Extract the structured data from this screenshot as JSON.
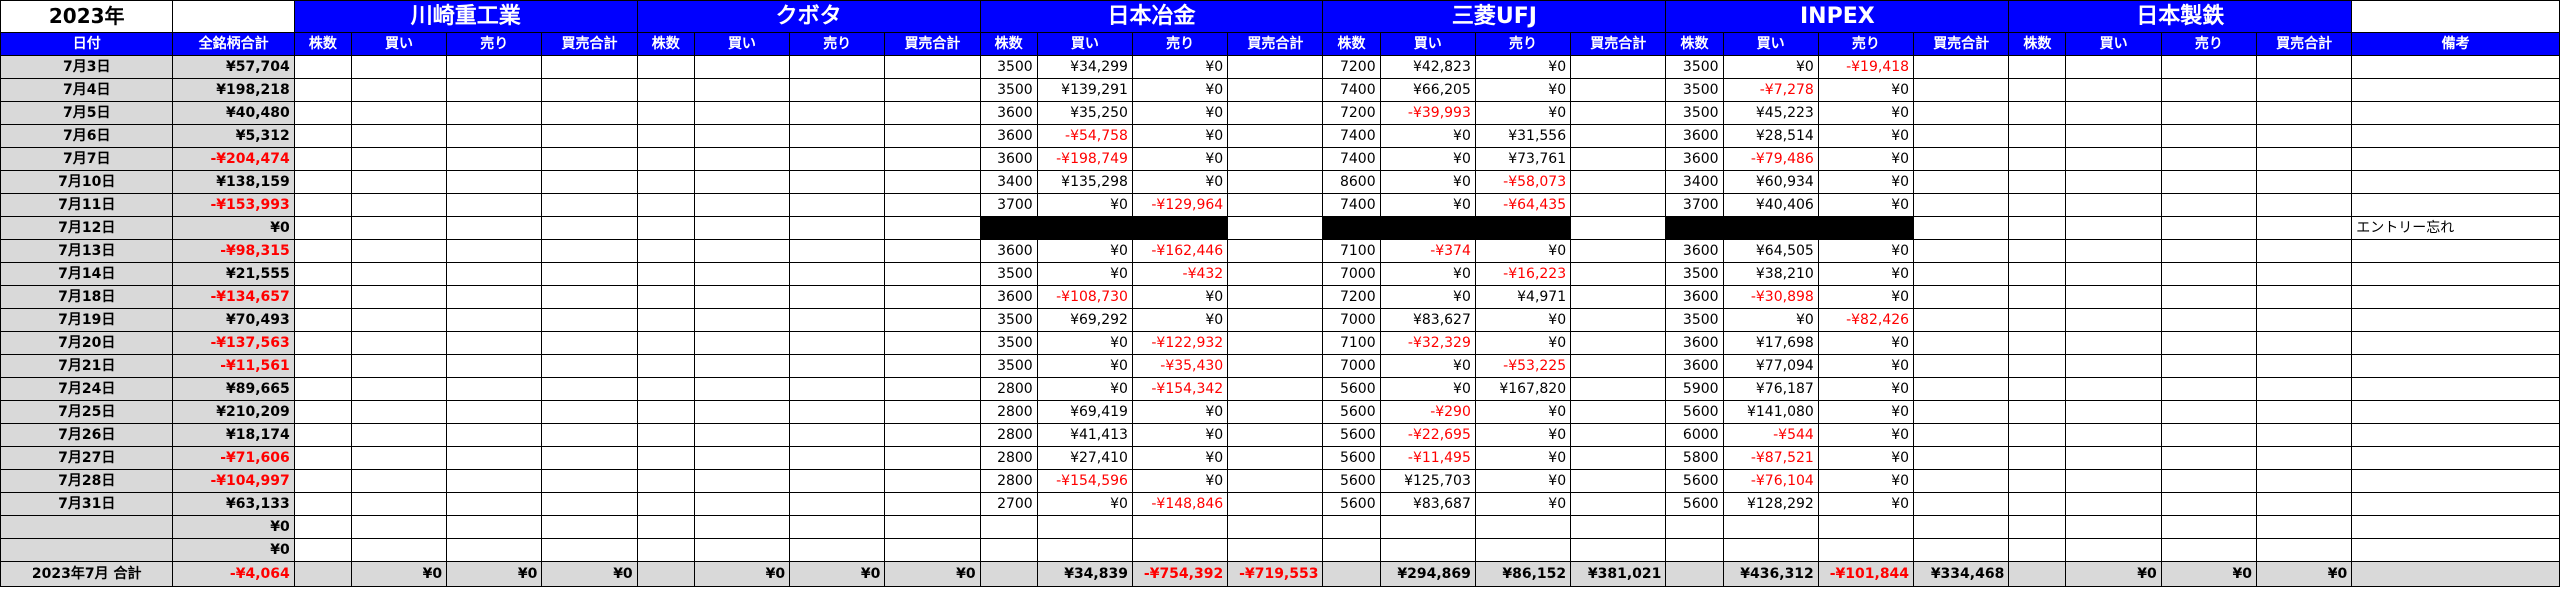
{
  "header": {
    "year": "2023年",
    "date_header": "日付",
    "total_header": "全銘柄合計",
    "notes_header": "備考",
    "sub_headers": [
      "株数",
      "買い",
      "売り",
      "買売合計"
    ]
  },
  "colors": {
    "header_blue": "#0000ff",
    "negative_red": "#ff0000",
    "date_gray": "#d9d9d9"
  },
  "stocks": [
    "川崎重工業",
    "クボタ",
    "日本冶金",
    "三菱UFJ",
    "INPEX",
    "日本製鉄"
  ],
  "rows": [
    {
      "date": "7月3日",
      "total": "¥57,704",
      "s2": [
        "3500",
        "¥34,299",
        "¥0",
        ""
      ],
      "s3": [
        "7200",
        "¥42,823",
        "¥0",
        ""
      ],
      "s4": [
        "3500",
        "¥0",
        "-¥19,418",
        ""
      ],
      "note": ""
    },
    {
      "date": "7月4日",
      "total": "¥198,218",
      "s2": [
        "3500",
        "¥139,291",
        "¥0",
        ""
      ],
      "s3": [
        "7400",
        "¥66,205",
        "¥0",
        ""
      ],
      "s4": [
        "3500",
        "-¥7,278",
        "¥0",
        ""
      ],
      "note": ""
    },
    {
      "date": "7月5日",
      "total": "¥40,480",
      "s2": [
        "3600",
        "¥35,250",
        "¥0",
        ""
      ],
      "s3": [
        "7200",
        "-¥39,993",
        "¥0",
        ""
      ],
      "s4": [
        "3500",
        "¥45,223",
        "¥0",
        ""
      ],
      "note": ""
    },
    {
      "date": "7月6日",
      "total": "¥5,312",
      "s2": [
        "3600",
        "-¥54,758",
        "¥0",
        ""
      ],
      "s3": [
        "7400",
        "¥0",
        "¥31,556",
        ""
      ],
      "s4": [
        "3600",
        "¥28,514",
        "¥0",
        ""
      ],
      "note": ""
    },
    {
      "date": "7月7日",
      "total": "-¥204,474",
      "s2": [
        "3600",
        "-¥198,749",
        "¥0",
        ""
      ],
      "s3": [
        "7400",
        "¥0",
        "¥73,761",
        ""
      ],
      "s4": [
        "3600",
        "-¥79,486",
        "¥0",
        ""
      ],
      "note": ""
    },
    {
      "date": "7月10日",
      "total": "¥138,159",
      "s2": [
        "3400",
        "¥135,298",
        "¥0",
        ""
      ],
      "s3": [
        "8600",
        "¥0",
        "-¥58,073",
        ""
      ],
      "s4": [
        "3400",
        "¥60,934",
        "¥0",
        ""
      ],
      "note": ""
    },
    {
      "date": "7月11日",
      "total": "-¥153,993",
      "s2": [
        "3700",
        "¥0",
        "-¥129,964",
        ""
      ],
      "s3": [
        "7400",
        "¥0",
        "-¥64,435",
        ""
      ],
      "s4": [
        "3700",
        "¥40,406",
        "¥0",
        ""
      ],
      "note": ""
    },
    {
      "date": "7月12日",
      "total": "¥0",
      "blank": true,
      "s2": [
        "",
        "",
        "",
        ""
      ],
      "s3": [
        "",
        "",
        "",
        ""
      ],
      "s4": [
        "",
        "",
        "",
        ""
      ],
      "note": "エントリー忘れ"
    },
    {
      "date": "7月13日",
      "total": "-¥98,315",
      "s2": [
        "3600",
        "¥0",
        "-¥162,446",
        ""
      ],
      "s3": [
        "7100",
        "-¥374",
        "¥0",
        ""
      ],
      "s4": [
        "3600",
        "¥64,505",
        "¥0",
        ""
      ],
      "note": ""
    },
    {
      "date": "7月14日",
      "total": "¥21,555",
      "s2": [
        "3500",
        "¥0",
        "-¥432",
        ""
      ],
      "s3": [
        "7000",
        "¥0",
        "-¥16,223",
        ""
      ],
      "s4": [
        "3500",
        "¥38,210",
        "¥0",
        ""
      ],
      "note": ""
    },
    {
      "date": "7月18日",
      "total": "-¥134,657",
      "s2": [
        "3600",
        "-¥108,730",
        "¥0",
        ""
      ],
      "s3": [
        "7200",
        "¥0",
        "¥4,971",
        ""
      ],
      "s4": [
        "3600",
        "-¥30,898",
        "¥0",
        ""
      ],
      "note": ""
    },
    {
      "date": "7月19日",
      "total": "¥70,493",
      "s2": [
        "3500",
        "¥69,292",
        "¥0",
        ""
      ],
      "s3": [
        "7000",
        "¥83,627",
        "¥0",
        ""
      ],
      "s4": [
        "3500",
        "¥0",
        "-¥82,426",
        ""
      ],
      "note": ""
    },
    {
      "date": "7月20日",
      "total": "-¥137,563",
      "s2": [
        "3500",
        "¥0",
        "-¥122,932",
        ""
      ],
      "s3": [
        "7100",
        "-¥32,329",
        "¥0",
        ""
      ],
      "s4": [
        "3600",
        "¥17,698",
        "¥0",
        ""
      ],
      "note": ""
    },
    {
      "date": "7月21日",
      "total": "-¥11,561",
      "s2": [
        "3500",
        "¥0",
        "-¥35,430",
        ""
      ],
      "s3": [
        "7000",
        "¥0",
        "-¥53,225",
        ""
      ],
      "s4": [
        "3600",
        "¥77,094",
        "¥0",
        ""
      ],
      "note": ""
    },
    {
      "date": "7月24日",
      "total": "¥89,665",
      "s2": [
        "2800",
        "¥0",
        "-¥154,342",
        ""
      ],
      "s3": [
        "5600",
        "¥0",
        "¥167,820",
        ""
      ],
      "s4": [
        "5900",
        "¥76,187",
        "¥0",
        ""
      ],
      "note": ""
    },
    {
      "date": "7月25日",
      "total": "¥210,209",
      "s2": [
        "2800",
        "¥69,419",
        "¥0",
        ""
      ],
      "s3": [
        "5600",
        "-¥290",
        "¥0",
        ""
      ],
      "s4": [
        "5600",
        "¥141,080",
        "¥0",
        ""
      ],
      "note": ""
    },
    {
      "date": "7月26日",
      "total": "¥18,174",
      "s2": [
        "2800",
        "¥41,413",
        "¥0",
        ""
      ],
      "s3": [
        "5600",
        "-¥22,695",
        "¥0",
        ""
      ],
      "s4": [
        "6000",
        "-¥544",
        "¥0",
        ""
      ],
      "note": ""
    },
    {
      "date": "7月27日",
      "total": "-¥71,606",
      "s2": [
        "2800",
        "¥27,410",
        "¥0",
        ""
      ],
      "s3": [
        "5600",
        "-¥11,495",
        "¥0",
        ""
      ],
      "s4": [
        "5800",
        "-¥87,521",
        "¥0",
        ""
      ],
      "note": ""
    },
    {
      "date": "7月28日",
      "total": "-¥104,997",
      "s2": [
        "2800",
        "-¥154,596",
        "¥0",
        ""
      ],
      "s3": [
        "5600",
        "¥125,703",
        "¥0",
        ""
      ],
      "s4": [
        "5600",
        "-¥76,104",
        "¥0",
        ""
      ],
      "note": ""
    },
    {
      "date": "7月31日",
      "total": "¥63,133",
      "s2": [
        "2700",
        "¥0",
        "-¥148,846",
        ""
      ],
      "s3": [
        "5600",
        "¥83,687",
        "¥0",
        ""
      ],
      "s4": [
        "5600",
        "¥128,292",
        "¥0",
        ""
      ],
      "note": ""
    },
    {
      "date": "",
      "total": "¥0",
      "s2": [
        "",
        "",
        "",
        ""
      ],
      "s3": [
        "",
        "",
        "",
        ""
      ],
      "s4": [
        "",
        "",
        "",
        ""
      ],
      "note": ""
    },
    {
      "date": "",
      "total": "¥0",
      "s2": [
        "",
        "",
        "",
        ""
      ],
      "s3": [
        "",
        "",
        "",
        ""
      ],
      "s4": [
        "",
        "",
        "",
        ""
      ],
      "note": ""
    }
  ],
  "footer": {
    "label": "2023年7月 合計",
    "total": "-¥4,064",
    "stocks": [
      [
        "",
        "¥0",
        "¥0",
        "¥0"
      ],
      [
        "",
        "¥0",
        "¥0",
        "¥0"
      ],
      [
        "",
        "¥34,839",
        "-¥754,392",
        "-¥719,553"
      ],
      [
        "",
        "¥294,869",
        "¥86,152",
        "¥381,021"
      ],
      [
        "",
        "¥436,312",
        "-¥101,844",
        "¥334,468"
      ],
      [
        "",
        "¥0",
        "¥0",
        "¥0"
      ]
    ],
    "note": ""
  }
}
